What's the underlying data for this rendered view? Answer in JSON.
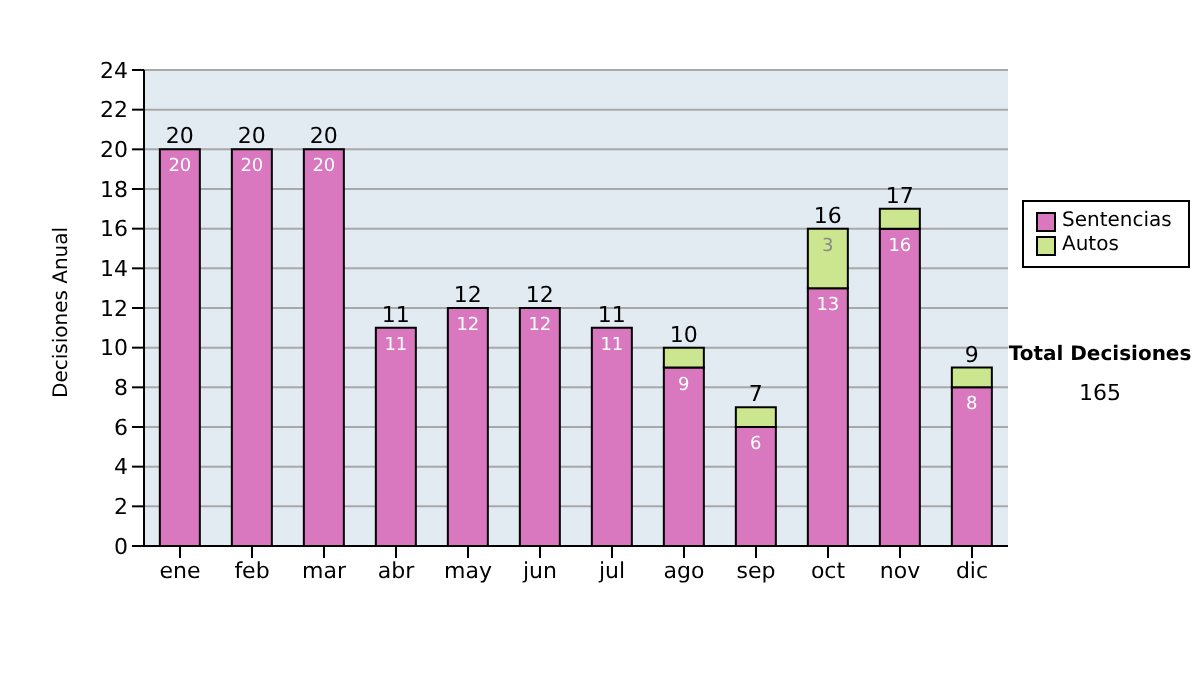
{
  "chart_data": {
    "type": "bar",
    "stacked": true,
    "categories": [
      "ene",
      "feb",
      "mar",
      "abr",
      "may",
      "jun",
      "jul",
      "ago",
      "sep",
      "oct",
      "nov",
      "dic"
    ],
    "series": [
      {
        "name": "Sentencias",
        "color": "#d977bf",
        "values": [
          20,
          20,
          20,
          11,
          12,
          12,
          11,
          9,
          6,
          13,
          16,
          8
        ],
        "value_labels": [
          "20",
          "20",
          "20",
          "11",
          "12",
          "12",
          "11",
          "9",
          "6",
          "13",
          "16",
          "8"
        ]
      },
      {
        "name": "Autos",
        "color": "#cce68f",
        "values": [
          null,
          null,
          null,
          null,
          null,
          null,
          null,
          1,
          1,
          3,
          1,
          1
        ],
        "value_labels": [
          null,
          null,
          null,
          null,
          null,
          null,
          null,
          null,
          null,
          "3",
          null,
          null
        ]
      }
    ],
    "totals": [
      "20",
      "20",
      "20",
      "11",
      "12",
      "12",
      "11",
      "10",
      "7",
      "16",
      "17",
      "9"
    ],
    "ylabel": "Decisiones Anual",
    "ylim": [
      0,
      24
    ],
    "yticks": [
      0,
      2,
      4,
      6,
      8,
      10,
      12,
      14,
      16,
      18,
      20,
      22,
      24
    ],
    "grid": "y",
    "legend": "right",
    "annotations": [
      "Total Decisiones",
      "165"
    ]
  }
}
